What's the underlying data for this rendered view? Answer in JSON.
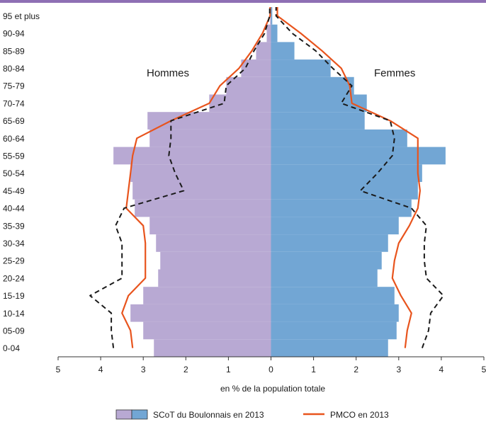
{
  "colors": {
    "top_strip": "#8e6fb4",
    "hommes_bar": "#b8a9d3",
    "femmes_bar": "#72a6d4",
    "pmco_line": "#e8541d",
    "dashed_line": "#1a1a1a",
    "axis": "#333333"
  },
  "chart_data": {
    "type": "bar",
    "orientation": "horizontal",
    "subtype": "population-pyramid",
    "categories": [
      "0-04",
      "05-09",
      "10-14",
      "15-19",
      "20-24",
      "25-29",
      "30-34",
      "35-39",
      "40-44",
      "45-49",
      "50-54",
      "55-59",
      "60-64",
      "65-69",
      "70-74",
      "75-79",
      "80-84",
      "85-89",
      "90-94",
      "95 et plus"
    ],
    "xlabel": "en % de la population totale",
    "xlim": [
      -5,
      5
    ],
    "x_tick_labels": [
      "5",
      "4",
      "3",
      "2",
      "1",
      "0",
      "1",
      "2",
      "3",
      "4",
      "5"
    ],
    "side_labels": {
      "left": "Hommes",
      "right": "Femmes"
    },
    "series": [
      {
        "name": "SCoT du Boulonnais en 2013",
        "style": "bars",
        "hommes": [
          2.75,
          3.0,
          3.3,
          3.0,
          2.65,
          2.6,
          2.7,
          2.85,
          3.2,
          3.25,
          3.3,
          3.7,
          2.85,
          2.9,
          1.45,
          1.05,
          0.7,
          0.35,
          0.1,
          0.02
        ],
        "femmes": [
          2.75,
          2.95,
          3.0,
          2.9,
          2.5,
          2.6,
          2.75,
          3.0,
          3.3,
          3.45,
          3.55,
          4.1,
          3.2,
          2.2,
          2.25,
          1.95,
          1.4,
          0.55,
          0.15,
          0.03
        ]
      },
      {
        "name": "PMCO en 2013",
        "style": "line",
        "hommes": [
          3.25,
          3.3,
          3.5,
          3.35,
          2.95,
          2.95,
          2.95,
          3.0,
          3.4,
          3.35,
          3.3,
          3.25,
          3.15,
          2.35,
          1.45,
          1.2,
          0.75,
          0.45,
          0.2,
          0.02
        ],
        "femmes": [
          3.15,
          3.2,
          3.3,
          3.05,
          2.85,
          2.9,
          3.0,
          3.25,
          3.45,
          3.5,
          3.45,
          3.45,
          3.45,
          2.8,
          1.9,
          1.85,
          1.65,
          1.2,
          0.7,
          0.15
        ]
      },
      {
        "style": "dashed-line",
        "hommes": [
          3.7,
          3.75,
          3.75,
          4.25,
          3.5,
          3.5,
          3.5,
          3.65,
          3.45,
          2.05,
          2.25,
          2.4,
          2.35,
          2.35,
          1.1,
          1.05,
          0.6,
          0.4,
          0.15,
          0.03
        ],
        "femmes": [
          3.55,
          3.7,
          3.75,
          4.05,
          3.65,
          3.6,
          3.6,
          3.65,
          3.3,
          2.1,
          2.5,
          2.85,
          2.9,
          2.8,
          1.65,
          1.9,
          1.45,
          1.05,
          0.5,
          0.12
        ]
      }
    ],
    "legend": {
      "position": "bottom",
      "items": [
        "SCoT du Boulonnais en 2013",
        "PMCO en 2013"
      ]
    },
    "grid": false
  }
}
